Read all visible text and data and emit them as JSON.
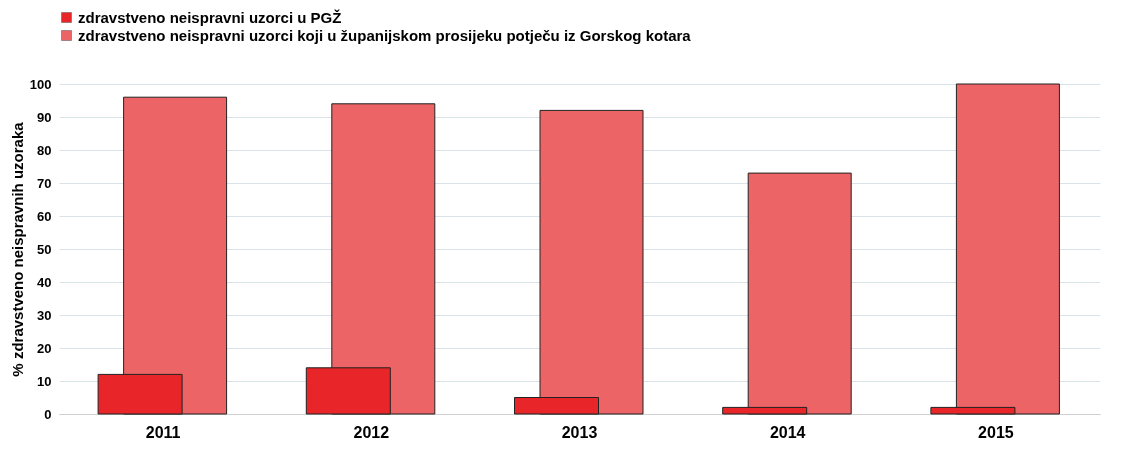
{
  "chart_data": {
    "type": "bar",
    "ylabel": "% zdravstveno neispravnih uzoraka",
    "categories": [
      "2011",
      "2012",
      "2013",
      "2014",
      "2015"
    ],
    "series": [
      {
        "name": "zdravstveno neispravni uzorci u PGŽ",
        "color": "#e8262a",
        "values": [
          12,
          14,
          5,
          2,
          2
        ]
      },
      {
        "name": "zdravstveno neispravni uzorci koji u županijskom prosijeku potječu iz Gorskog kotara",
        "color": "#ec6466",
        "values": [
          96,
          94,
          92,
          73,
          100
        ]
      }
    ],
    "ylim": [
      0,
      100
    ],
    "yticks": [
      0,
      10,
      20,
      30,
      40,
      50,
      60,
      70,
      80,
      90,
      100
    ],
    "grid": "y",
    "legend": "top left"
  }
}
